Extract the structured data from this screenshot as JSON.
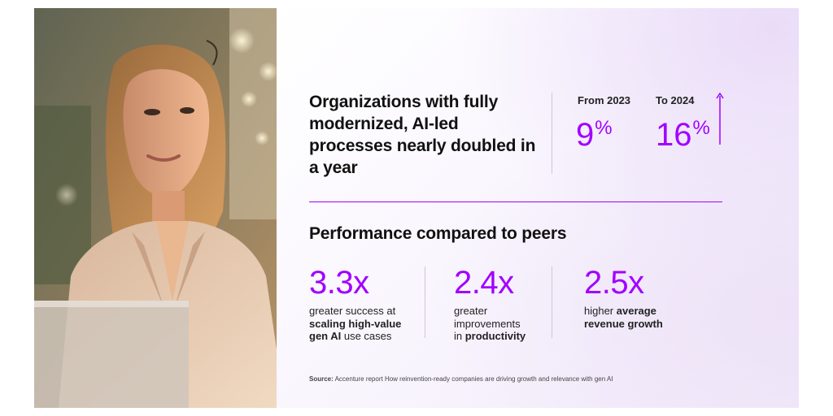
{
  "image": {
    "description_icon": "woman-portrait-photo"
  },
  "colors": {
    "accent": "#a100ff",
    "text": "#111111",
    "divider": "#cfc4dc"
  },
  "headline": "Organizations with fully modernized, AI-led processes nearly doubled in a year",
  "comparison": {
    "from_label": "From 2023",
    "from_value": "9",
    "to_label": "To 2024",
    "to_value": "16",
    "unit": "%",
    "trend_icon": "arrow-up-icon"
  },
  "performance": {
    "title": "Performance compared to peers",
    "metrics": [
      {
        "value": "3.3x",
        "desc_line1": "greater success at",
        "desc_line2_bold": "scaling high-value",
        "desc_line3_bold": "gen AI",
        "desc_line3_rest": " use cases"
      },
      {
        "value": "2.4x",
        "desc_line1": "greater",
        "desc_line2": "improvements",
        "desc_line3_pre": "in ",
        "desc_line3_bold": "productivity"
      },
      {
        "value": "2.5x",
        "desc_line1_pre": "higher ",
        "desc_line1_bold": "average",
        "desc_line2_bold": "revenue growth"
      }
    ]
  },
  "source": {
    "label": "Source:",
    "text": " Accenture report How reinvention-ready companies are driving growth and relevance with gen AI"
  }
}
